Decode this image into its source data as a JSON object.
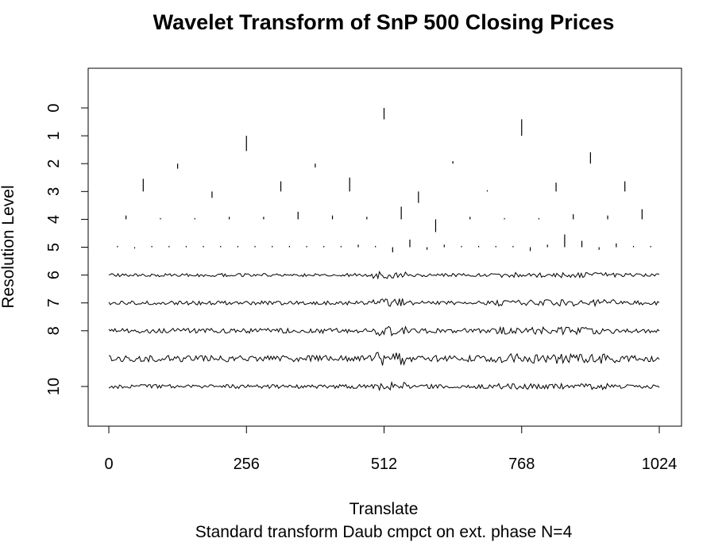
{
  "chart_data": {
    "type": "wavelet-coefficient-plot",
    "title": "Wavelet Transform of SnP 500 Closing Prices",
    "xlabel": "Translate",
    "ylabel": "Resolution Level",
    "subtitle": "Standard transform Daub cmpct on ext. phase N=4",
    "xlim": [
      0,
      1024
    ],
    "x_ticks": [
      0,
      256,
      512,
      768,
      1024
    ],
    "y_ticks": [
      0,
      1,
      2,
      3,
      4,
      5,
      6,
      7,
      8,
      10
    ],
    "levels": [
      0,
      1,
      2,
      3,
      4,
      5,
      6,
      7,
      8,
      9,
      10
    ],
    "coefficients": {
      "0": [
        -0.9
      ],
      "1": [
        -1.2,
        1.3
      ],
      "2": [
        -0.4,
        -0.3,
        0.2,
        0.9
      ],
      "3": [
        1.0,
        -0.5,
        0.8,
        1.1,
        -0.9,
        0.1,
        0.7,
        0.8
      ],
      "4": [
        0.3,
        0.1,
        0.1,
        0.2,
        0.2,
        0.6,
        0.3,
        0.2,
        1.0,
        -1.0,
        0.2,
        0.1,
        0.1,
        0.4,
        0.3,
        0.8
      ],
      "5": [
        0.1,
        -0.1,
        0.1,
        0.1,
        0.1,
        0.1,
        0.1,
        0.1,
        0.1,
        0.1,
        0.1,
        0.1,
        0.1,
        0.1,
        0.2,
        0.1,
        -0.4,
        0.6,
        -0.2,
        0.2,
        0.1,
        0.1,
        0.1,
        0.1,
        -0.3,
        0.2,
        1.0,
        0.5,
        -0.2,
        0.3,
        0.1,
        0.1
      ]
    }
  }
}
